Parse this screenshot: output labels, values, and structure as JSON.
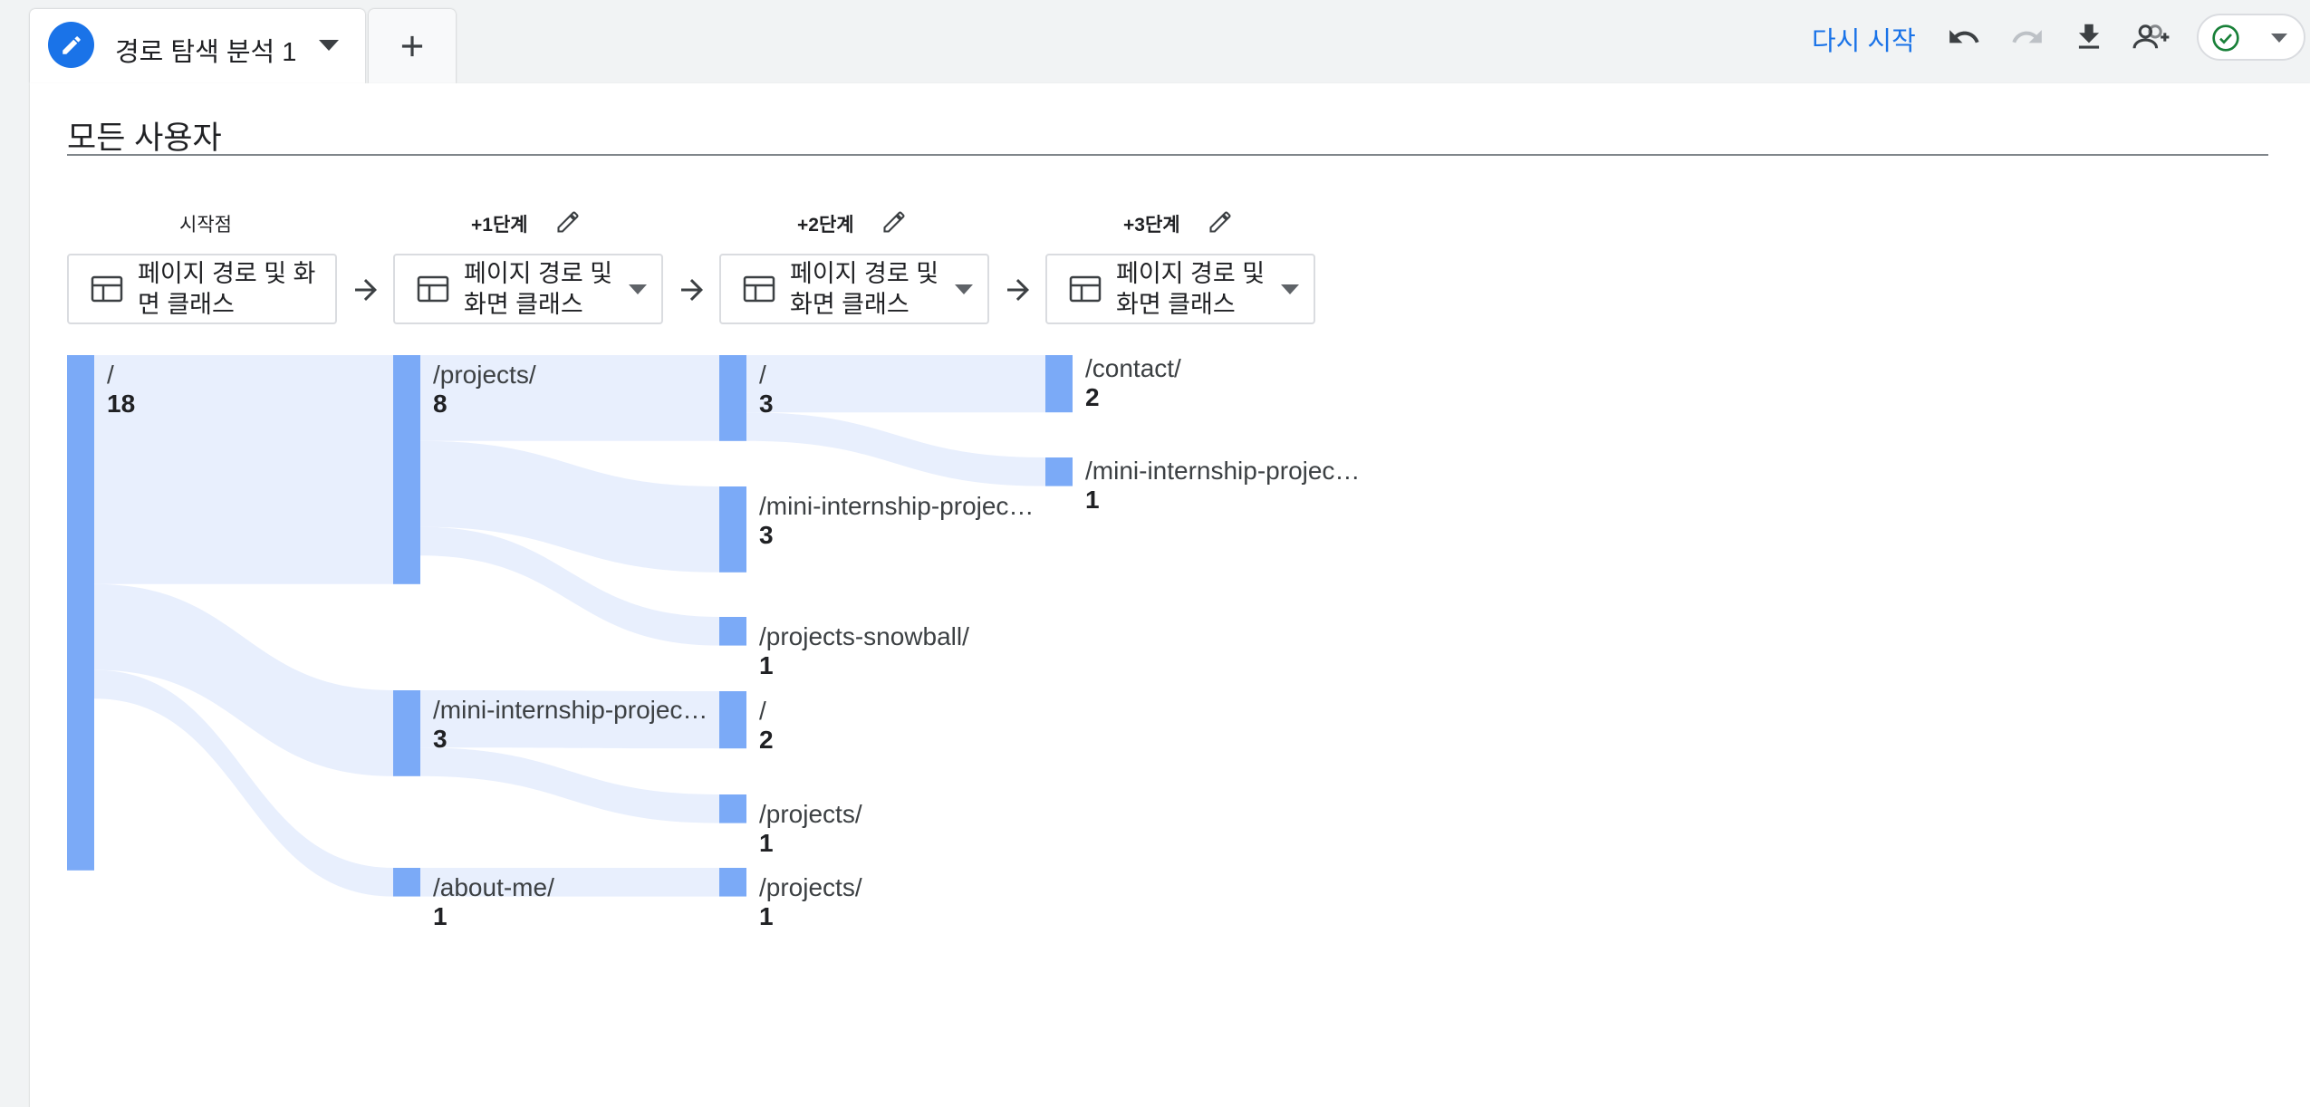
{
  "tab": {
    "title": "경로 탐색 분석 1",
    "add_label": "+"
  },
  "toolbar": {
    "restart_label": "다시 시작",
    "icons": [
      "undo-icon",
      "redo-icon",
      "download-icon",
      "share-users-icon",
      "check-circle-icon"
    ]
  },
  "colors": {
    "accent": "#1a73e8",
    "node": "#7baaf7",
    "link": "#e8effd",
    "check": "#188038"
  },
  "segment": {
    "title": "모든 사용자"
  },
  "steps": [
    {
      "label": "시작점",
      "dimension": "페이지 경로 및 화면 클래스",
      "dimension_lines": [
        "페이지 경로 및 화",
        "면 클래스"
      ],
      "editable": false,
      "dropdown": false
    },
    {
      "label": "+1단계",
      "dimension": "페이지 경로 및 화면 클래스",
      "dimension_lines": [
        "페이지 경로 및",
        "화면 클래스"
      ],
      "editable": true,
      "dropdown": true
    },
    {
      "label": "+2단계",
      "dimension": "페이지 경로 및 화면 클래스",
      "dimension_lines": [
        "페이지 경로 및",
        "화면 클래스"
      ],
      "editable": true,
      "dropdown": true
    },
    {
      "label": "+3단계",
      "dimension": "페이지 경로 및 화면 클래스",
      "dimension_lines": [
        "페이지 경로 및",
        "화면 클래스"
      ],
      "editable": true,
      "dropdown": true
    }
  ],
  "sankey": {
    "columns": [
      [
        {
          "id": "s0",
          "label": "/",
          "value": 18
        }
      ],
      [
        {
          "id": "a1",
          "label": "/projects/",
          "value": 8
        },
        {
          "id": "a2",
          "label": "/mini-internship-projec…",
          "value": 3
        },
        {
          "id": "a3",
          "label": "/about-me/",
          "value": 1
        }
      ],
      [
        {
          "id": "b1",
          "label": "/",
          "value": 3
        },
        {
          "id": "b2",
          "label": "/mini-internship-projec…",
          "value": 3
        },
        {
          "id": "b3",
          "label": "/projects-snowball/",
          "value": 1
        },
        {
          "id": "b4",
          "label": "/",
          "value": 2
        },
        {
          "id": "b5",
          "label": "/projects/",
          "value": 1
        },
        {
          "id": "b6",
          "label": "/projects/",
          "value": 1
        }
      ],
      [
        {
          "id": "c1",
          "label": "/contact/",
          "value": 2
        },
        {
          "id": "c2",
          "label": "/mini-internship-projec…",
          "value": 1
        }
      ]
    ],
    "links": [
      {
        "from": "s0",
        "to": "a1",
        "value": 8
      },
      {
        "from": "s0",
        "to": "a2",
        "value": 3
      },
      {
        "from": "s0",
        "to": "a3",
        "value": 1
      },
      {
        "from": "a1",
        "to": "b1",
        "value": 3
      },
      {
        "from": "a1",
        "to": "b2",
        "value": 3
      },
      {
        "from": "a1",
        "to": "b3",
        "value": 1
      },
      {
        "from": "a2",
        "to": "b4",
        "value": 2
      },
      {
        "from": "a2",
        "to": "b5",
        "value": 1
      },
      {
        "from": "a3",
        "to": "b6",
        "value": 1
      },
      {
        "from": "b1",
        "to": "c1",
        "value": 2
      },
      {
        "from": "b1",
        "to": "c2",
        "value": 1
      }
    ]
  }
}
